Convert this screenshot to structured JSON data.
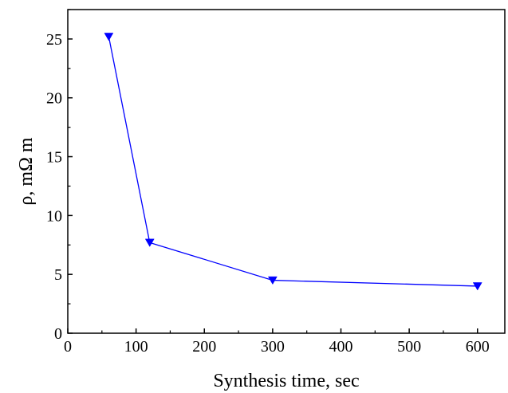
{
  "chart_data": {
    "type": "line",
    "xlabel": "Synthesis time, sec",
    "ylabel": "ρ, mΩ m",
    "xlim": [
      0,
      640
    ],
    "ylim": [
      0,
      27.5
    ],
    "x_ticks": [
      0,
      100,
      200,
      300,
      400,
      500,
      600
    ],
    "x_tick_labels": [
      "0",
      "100",
      "200",
      "300",
      "400",
      "500",
      "600"
    ],
    "y_ticks": [
      0,
      5,
      10,
      15,
      20,
      25
    ],
    "y_tick_labels": [
      "0",
      "5",
      "10",
      "15",
      "20",
      "25"
    ],
    "grid": false,
    "legend": "none",
    "marker": "triangle-down",
    "series": [
      {
        "color": "#0000ff",
        "x": [
          60,
          120,
          300,
          600
        ],
        "y": [
          25.2,
          7.7,
          4.5,
          4.0
        ]
      }
    ]
  }
}
